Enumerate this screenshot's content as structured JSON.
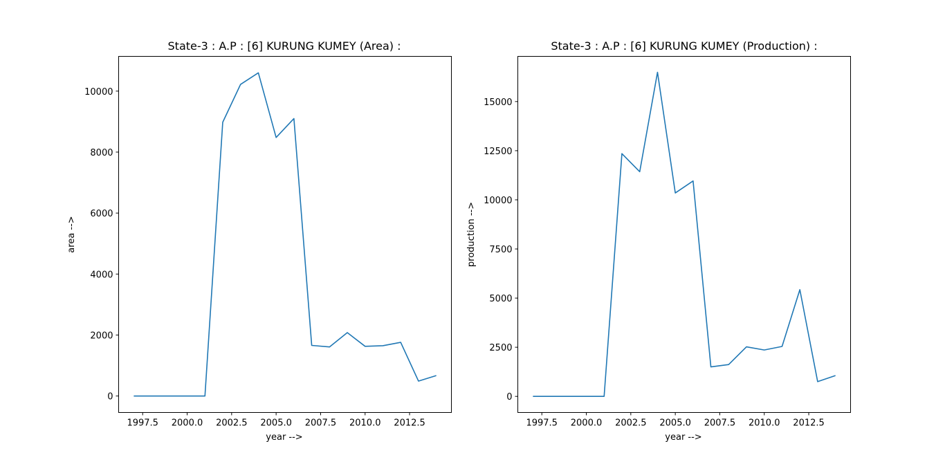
{
  "chart_data": [
    {
      "type": "line",
      "title": "State-3 : A.P : [6] KURUNG KUMEY (Area) :",
      "xlabel": "year -->",
      "ylabel": "area -->",
      "xlim": [
        1996.15,
        2014.85
      ],
      "ylim": [
        -540,
        11140
      ],
      "xticks": [
        1997.5,
        2000.0,
        2002.5,
        2005.0,
        2007.5,
        2010.0,
        2012.5
      ],
      "xtick_labels": [
        "1997.5",
        "2000.0",
        "2002.5",
        "2005.0",
        "2007.5",
        "2010.0",
        "2012.5"
      ],
      "yticks": [
        0,
        2000,
        4000,
        6000,
        8000,
        10000
      ],
      "ytick_labels": [
        "0",
        "2000",
        "4000",
        "6000",
        "8000",
        "10000"
      ],
      "grid": false,
      "color": "#1f77b4",
      "x": [
        1997,
        1998,
        1999,
        2000,
        2001,
        2002,
        2003,
        2004,
        2005,
        2006,
        2007,
        2008,
        2009,
        2010,
        2011,
        2012,
        2013,
        2014
      ],
      "y": [
        0,
        0,
        0,
        0,
        0,
        8980,
        10220,
        10600,
        8480,
        9100,
        1660,
        1610,
        2080,
        1630,
        1650,
        1760,
        490,
        670
      ]
    },
    {
      "type": "line",
      "title": "State-3 : A.P : [6] KURUNG KUMEY (Production) :",
      "xlabel": "year -->",
      "ylabel": "production -->",
      "xlim": [
        1996.15,
        2014.85
      ],
      "ylim": [
        -820,
        17300
      ],
      "xticks": [
        1997.5,
        2000.0,
        2002.5,
        2005.0,
        2007.5,
        2010.0,
        2012.5
      ],
      "xtick_labels": [
        "1997.5",
        "2000.0",
        "2002.5",
        "2005.0",
        "2007.5",
        "2010.0",
        "2012.5"
      ],
      "yticks": [
        0,
        2500,
        5000,
        7500,
        10000,
        12500,
        15000
      ],
      "ytick_labels": [
        "0",
        "2500",
        "5000",
        "7500",
        "10000",
        "12500",
        "15000"
      ],
      "grid": false,
      "color": "#1f77b4",
      "x": [
        1997,
        1998,
        1999,
        2000,
        2001,
        2002,
        2003,
        2004,
        2005,
        2006,
        2007,
        2008,
        2009,
        2010,
        2011,
        2012,
        2013,
        2014
      ],
      "y": [
        0,
        0,
        0,
        0,
        0,
        12350,
        11430,
        16490,
        10350,
        10960,
        1500,
        1620,
        2520,
        2360,
        2540,
        5430,
        750,
        1060
      ]
    }
  ]
}
